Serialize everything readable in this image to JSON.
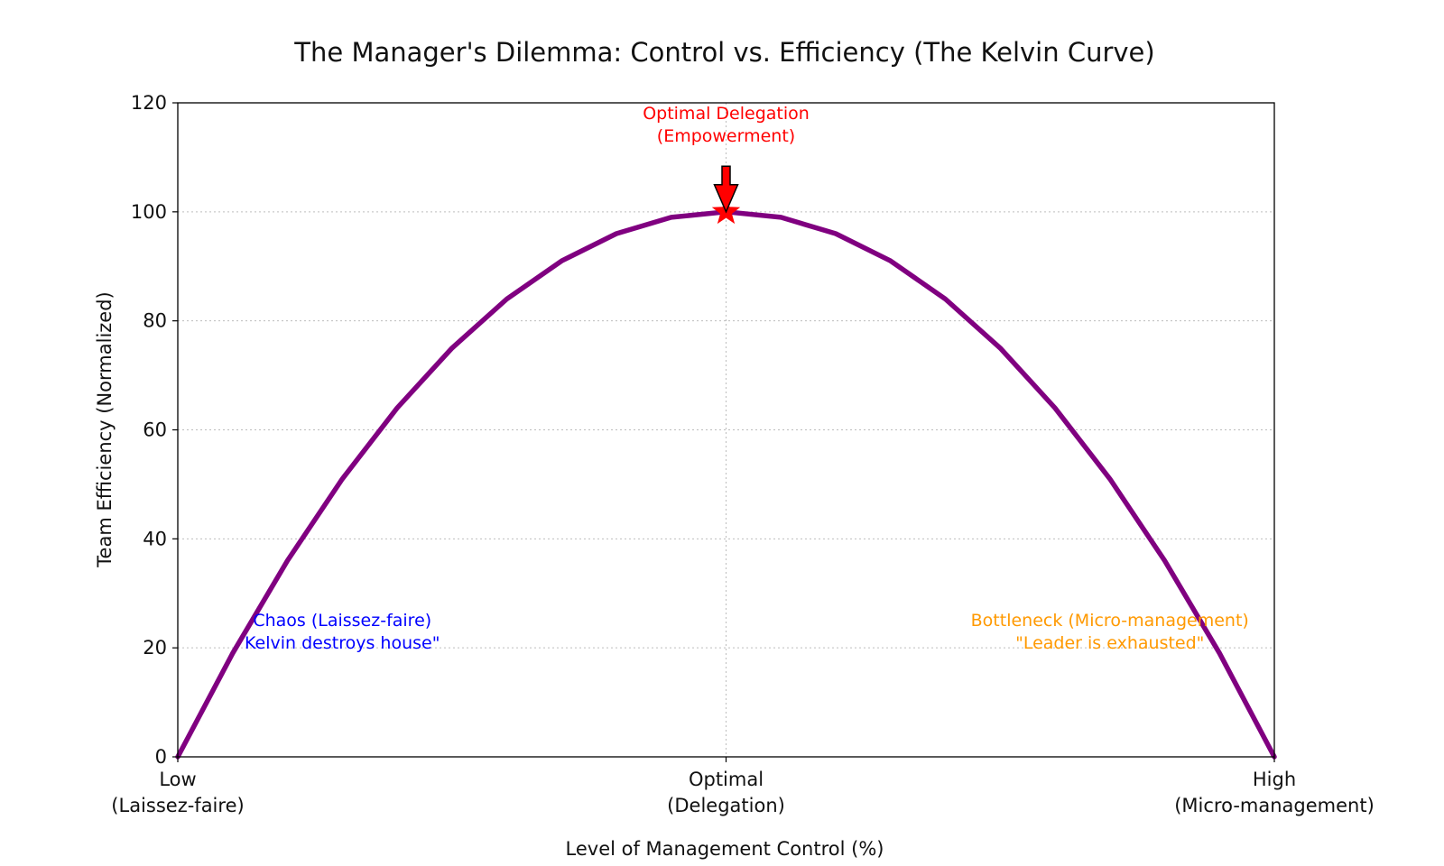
{
  "chart_data": {
    "type": "line",
    "title": "The Manager's Dilemma: Control vs. Efficiency (The Kelvin Curve)",
    "xlabel": "Level of Management Control (%)",
    "ylabel": "Team Efficiency (Normalized)",
    "xlim": [
      0,
      100
    ],
    "ylim": [
      0,
      120
    ],
    "yticks": [
      0,
      20,
      40,
      60,
      80,
      100,
      120
    ],
    "xticks": [
      {
        "value": 0,
        "lines": [
          "Low",
          "(Laissez-faire)"
        ]
      },
      {
        "value": 50,
        "lines": [
          "Optimal",
          "(Delegation)"
        ]
      },
      {
        "value": 100,
        "lines": [
          "High",
          "(Micro-management)"
        ]
      }
    ],
    "grid": true,
    "series": [
      {
        "color": "#800080",
        "x": [
          0,
          5,
          10,
          15,
          20,
          25,
          30,
          35,
          40,
          45,
          50,
          55,
          60,
          65,
          70,
          75,
          80,
          85,
          90,
          95,
          100
        ],
        "y": [
          0,
          19,
          36,
          51,
          64,
          75,
          84,
          91,
          96,
          99,
          100,
          99,
          96,
          91,
          84,
          75,
          64,
          51,
          36,
          19,
          0
        ]
      }
    ],
    "peak_marker": {
      "x": 50,
      "y": 100,
      "color": "#ff0000",
      "shape": "star"
    },
    "annotations": [
      {
        "name": "optimal",
        "lines": [
          "Optimal Delegation",
          "(Empowerment)"
        ],
        "color": "#ff0000",
        "x": 50,
        "y": 115,
        "arrow_to": {
          "x": 50,
          "y": 100
        }
      },
      {
        "name": "chaos",
        "lines": [
          "Chaos (Laissez-faire)",
          "Kelvin destroys house\""
        ],
        "color": "#0000ff",
        "x": 15,
        "y": 22
      },
      {
        "name": "bottleneck",
        "lines": [
          "Bottleneck (Micro-management)",
          "\"Leader is exhausted\""
        ],
        "color": "#ff9900",
        "x": 85,
        "y": 22
      }
    ]
  }
}
